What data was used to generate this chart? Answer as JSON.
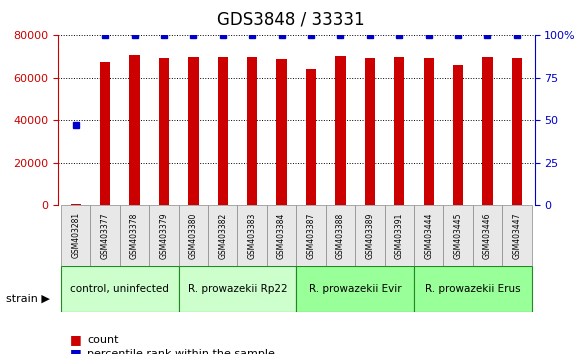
{
  "title": "GDS3848 / 33331",
  "samples": [
    "GSM403281",
    "GSM403377",
    "GSM403378",
    "GSM403379",
    "GSM403380",
    "GSM403382",
    "GSM403383",
    "GSM403384",
    "GSM403387",
    "GSM403388",
    "GSM403389",
    "GSM403391",
    "GSM403444",
    "GSM403445",
    "GSM403446",
    "GSM403447"
  ],
  "counts": [
    500,
    67500,
    71000,
    69500,
    70000,
    70000,
    70000,
    69000,
    64000,
    70500,
    69500,
    70000,
    69500,
    66000,
    70000,
    69500
  ],
  "percentiles": [
    47,
    100,
    100,
    100,
    100,
    100,
    100,
    100,
    100,
    100,
    100,
    100,
    100,
    100,
    100,
    100
  ],
  "ylim_left": [
    0,
    80000
  ],
  "ylim_right": [
    0,
    100
  ],
  "yticks_left": [
    0,
    20000,
    40000,
    60000,
    80000
  ],
  "yticks_right": [
    0,
    25,
    50,
    75,
    100
  ],
  "ytick_labels_left": [
    "0",
    "20000",
    "40000",
    "60000",
    "80000"
  ],
  "ytick_labels_right": [
    "0",
    "25",
    "50",
    "75",
    "100%"
  ],
  "bar_color": "#cc0000",
  "dot_color": "#0000cc",
  "grid_color": "#000000",
  "groups": [
    {
      "label": "control, uninfected",
      "start": 0,
      "end": 3,
      "color": "#ccffcc"
    },
    {
      "label": "R. prowazekii Rp22",
      "start": 4,
      "end": 7,
      "color": "#ccffcc"
    },
    {
      "label": "R. prowazekii Evir",
      "start": 8,
      "end": 11,
      "color": "#99ff99"
    },
    {
      "label": "R. prowazekii Erus",
      "start": 12,
      "end": 15,
      "color": "#99ff99"
    }
  ],
  "legend_count_label": "count",
  "legend_percentile_label": "percentile rank within the sample",
  "strain_label": "strain",
  "background_color": "#ffffff",
  "plot_bg_color": "#ffffff",
  "title_fontsize": 12,
  "axis_label_fontsize": 9,
  "tick_fontsize": 8
}
